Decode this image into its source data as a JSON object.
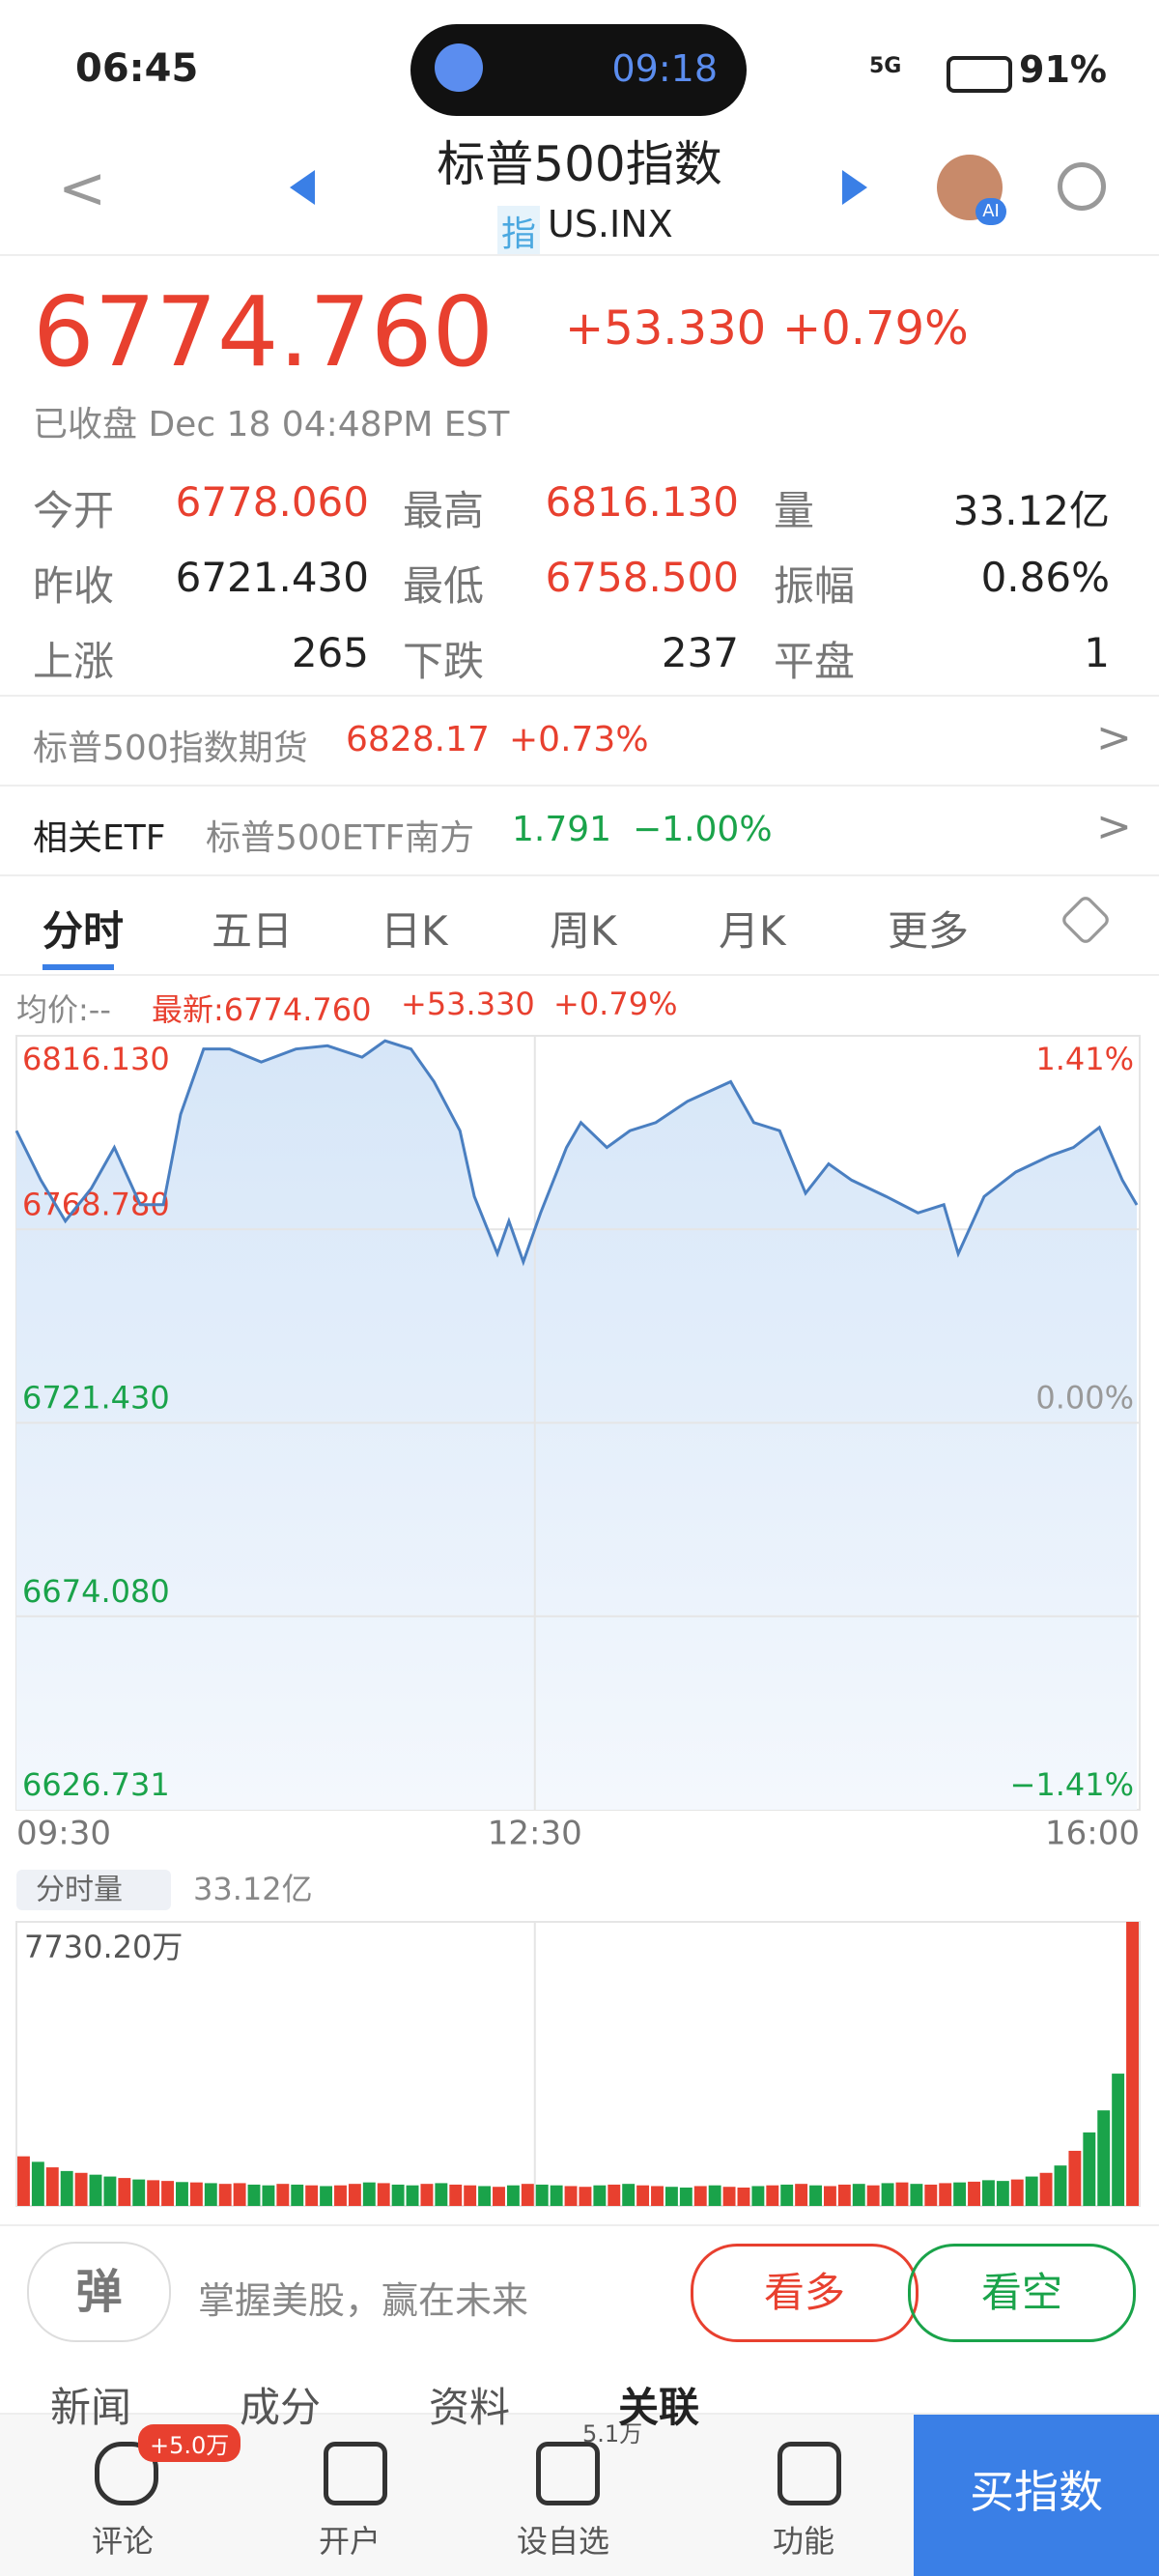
{
  "status": {
    "time": "06:45",
    "island_time": "09:18",
    "network": "5G",
    "battery": "91%"
  },
  "header": {
    "title": "标普500指数",
    "badge": "指",
    "code": "US.INX",
    "ai": "AI"
  },
  "quote": {
    "price": "6774.760",
    "change": "+53.330",
    "change_pct": "+0.79%",
    "status": "已收盘 Dec 18 04:48PM EST"
  },
  "stats": [
    [
      "今开",
      "6778.060"
    ],
    [
      "最高",
      "6816.130"
    ],
    [
      "量",
      "33.12亿"
    ],
    [
      "昨收",
      "6721.430"
    ],
    [
      "最低",
      "6758.500"
    ],
    [
      "振幅",
      "0.86%"
    ],
    [
      "上涨",
      "265"
    ],
    [
      "下跌",
      "237"
    ],
    [
      "平盘",
      "1"
    ]
  ],
  "futures": {
    "name": "标普500指数期货",
    "price": "6828.17",
    "pct": "+0.73%"
  },
  "etf": {
    "label": "相关ETF",
    "name": "标普500ETF南方",
    "price": "1.791",
    "pct": "−1.00%"
  },
  "tabs": [
    "分时",
    "五日",
    "日K",
    "周K",
    "月K",
    "更多"
  ],
  "info": {
    "avg": "均价:--",
    "latest": "最新:6774.760",
    "change": "+53.330",
    "pct": "+0.79%"
  },
  "chart_data": [
    {
      "type": "line",
      "color": "#4a7fc1",
      "x": [
        0,
        8.5,
        17,
        26,
        34,
        43,
        51,
        57,
        65,
        74,
        85,
        97,
        108,
        120,
        128,
        137,
        145,
        154,
        159,
        167,
        171,
        176,
        182,
        191,
        196,
        205,
        213,
        222,
        233,
        248,
        256,
        265,
        274,
        282,
        290,
        302,
        313,
        322,
        327,
        336,
        347,
        359,
        367,
        376,
        384,
        389
      ],
      "values": [
        6792.9,
        6780.8,
        6770.8,
        6778.8,
        6788.8,
        6774.8,
        6774.8,
        6796.9,
        6812.9,
        6812.9,
        6809.7,
        6812.9,
        6813.7,
        6810.9,
        6814.9,
        6812.9,
        6804.9,
        6792.9,
        6776.8,
        6762.8,
        6770.8,
        6760.8,
        6772.8,
        6788.8,
        6794.9,
        6788.8,
        6792.9,
        6794.9,
        6800.1,
        6804.9,
        6794.9,
        6792.9,
        6777.6,
        6784.8,
        6780.8,
        6776.8,
        6772.8,
        6774.8,
        6762.8,
        6776.8,
        6782.8,
        6786.8,
        6788.8,
        6793.7,
        6780.8,
        6774.76
      ],
      "xlim": [
        0,
        390
      ],
      "xticks": [
        {
          "value": 0,
          "label": "09:30"
        },
        {
          "value": 180,
          "label": "12:30"
        },
        {
          "value": 390,
          "label": "16:00"
        }
      ],
      "ylim": [
        6626.731,
        6816.13
      ],
      "yticks": [
        {
          "value": 6816.13,
          "label": "6816.130"
        },
        {
          "value": 6768.78,
          "label": "6768.780"
        },
        {
          "value": 6721.43,
          "label": "6721.430"
        },
        {
          "value": 6674.08,
          "label": "6674.080"
        },
        6626.731
      ],
      "y2lim": [
        -1.41,
        1.41
      ],
      "y2ticks": [
        {
          "value": 1.41,
          "label": "1.41%"
        },
        {
          "value": 0,
          "label": "0.00%"
        },
        {
          "value": -1.41,
          "label": "−1.41%"
        }
      ]
    },
    {
      "type": "bar",
      "title": "分时量",
      "subtitle": "33.12亿",
      "values": [
        1350,
        1200,
        1050,
        950,
        900,
        850,
        800,
        760,
        720,
        700,
        680,
        650,
        640,
        620,
        600,
        620,
        580,
        560,
        600,
        580,
        560,
        540,
        560,
        600,
        640,
        620,
        580,
        560,
        600,
        620,
        580,
        560,
        540,
        520,
        560,
        600,
        580,
        560,
        540,
        520,
        560,
        580,
        600,
        560,
        540,
        520,
        500,
        540,
        560,
        520,
        500,
        540,
        560,
        580,
        600,
        560,
        540,
        580,
        600,
        560,
        620,
        640,
        600,
        580,
        620,
        640,
        660,
        700,
        680,
        720,
        800,
        900,
        1100,
        1500,
        2000,
        2600,
        3600,
        7730.2
      ],
      "colors": [
        "#e8402f",
        "#1aa34a",
        "#e8402f",
        "#1aa34a",
        "#e8402f",
        "#1aa34a",
        "#1aa34a",
        "#e8402f",
        "#1aa34a",
        "#e8402f",
        "#e8402f",
        "#1aa34a",
        "#e8402f",
        "#1aa34a",
        "#e8402f",
        "#e8402f",
        "#1aa34a",
        "#1aa34a",
        "#e8402f",
        "#1aa34a",
        "#e8402f",
        "#1aa34a",
        "#e8402f",
        "#e8402f",
        "#1aa34a",
        "#e8402f",
        "#1aa34a",
        "#1aa34a",
        "#e8402f",
        "#1aa34a",
        "#e8402f",
        "#e8402f",
        "#1aa34a",
        "#e8402f",
        "#1aa34a",
        "#e8402f",
        "#1aa34a",
        "#1aa34a",
        "#e8402f",
        "#e8402f",
        "#1aa34a",
        "#e8402f",
        "#1aa34a",
        "#e8402f",
        "#e8402f",
        "#1aa34a",
        "#1aa34a",
        "#e8402f",
        "#1aa34a",
        "#e8402f",
        "#e8402f",
        "#1aa34a",
        "#e8402f",
        "#1aa34a",
        "#e8402f",
        "#1aa34a",
        "#e8402f",
        "#e8402f",
        "#1aa34a",
        "#e8402f",
        "#1aa34a",
        "#e8402f",
        "#1aa34a",
        "#e8402f",
        "#e8402f",
        "#1aa34a",
        "#e8402f",
        "#1aa34a",
        "#1aa34a",
        "#e8402f",
        "#1aa34a",
        "#e8402f",
        "#1aa34a",
        "#e8402f",
        "#1aa34a",
        "#1aa34a",
        "#1aa34a",
        "#e8402f"
      ],
      "ylim": [
        0,
        7730.2
      ],
      "yticks": [
        {
          "value": 7730.2,
          "label": "7730.20万"
        }
      ]
    }
  ],
  "bottom": {
    "icon": "弹",
    "slogan": "掌握美股，赢在未来",
    "bull": "看多",
    "bear": "看空"
  },
  "news_tabs": [
    "新闻",
    "成分",
    "资料",
    "关联"
  ],
  "nav": {
    "comment": "评论",
    "comment_badge": "+5.0万",
    "account": "开户",
    "watch": "设自选",
    "watch_badge": "5.1万",
    "func": "功能",
    "buy": "买指数"
  }
}
